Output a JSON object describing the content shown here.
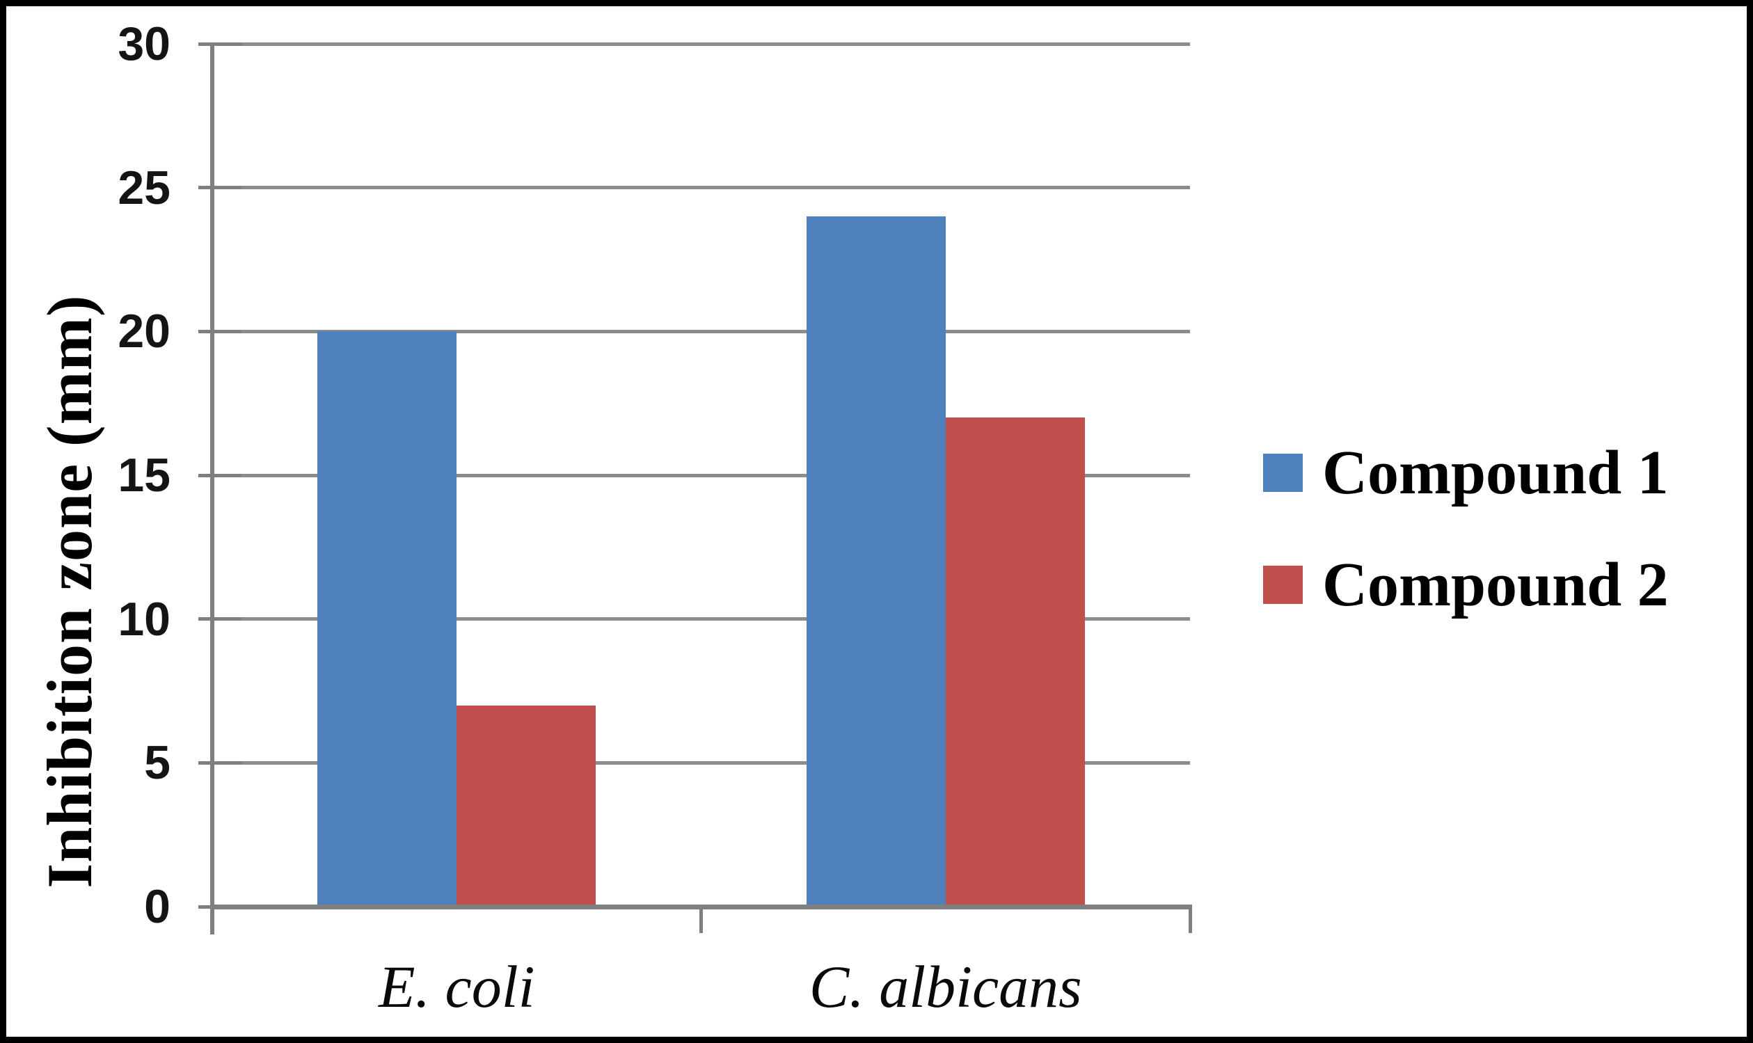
{
  "chart_data": {
    "type": "bar",
    "categories": [
      "E. coli",
      "C. albicans"
    ],
    "series": [
      {
        "name": "Compound 1",
        "color": "#4F81BD",
        "values": [
          20,
          24
        ]
      },
      {
        "name": "Compound 2",
        "color": "#C0504D",
        "values": [
          7,
          17
        ]
      }
    ],
    "title": "",
    "xlabel": "",
    "ylabel": "Inhibition zone (mm)",
    "ylim": [
      0,
      30
    ],
    "yticks": [
      0,
      5,
      10,
      15,
      20,
      25,
      30
    ],
    "grid": true,
    "legend_position": "right",
    "colors": {
      "gridline": "#8C8C8C",
      "axis": "#7F7F7F",
      "frame": "#000000",
      "background": "#FFFFFF",
      "text": "#000000"
    }
  }
}
